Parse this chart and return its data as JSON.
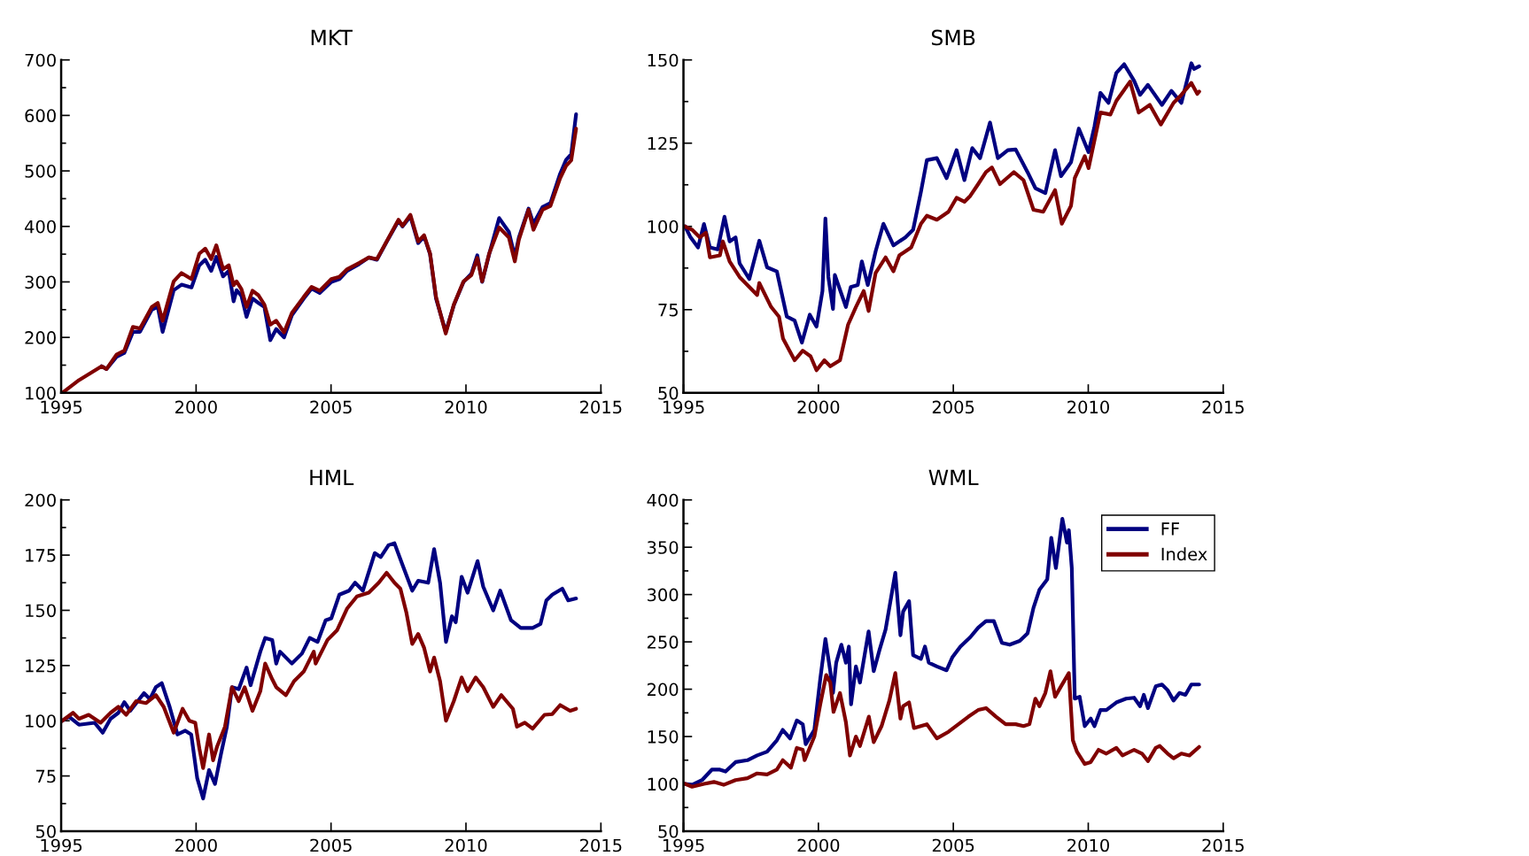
{
  "chart_data": [
    {
      "type": "line",
      "title": "MKT",
      "xlim": [
        1995,
        2015
      ],
      "xticks": [
        1995,
        2000,
        2005,
        2010,
        2015
      ],
      "ylim": [
        100,
        700
      ],
      "yticks": [
        100,
        200,
        300,
        400,
        500,
        600,
        700
      ],
      "grid": false,
      "legend": false,
      "series": [
        {
          "color": "#000080",
          "x": [
            1996.5,
            1996.68,
            1997.05,
            1997.34,
            1997.66,
            1997.92,
            1998.36,
            1998.58,
            1998.76,
            1999.17,
            1999.46,
            1999.83,
            2000.12,
            2000.34,
            2000.56,
            2000.75,
            2001.0,
            2001.21,
            2001.39,
            2001.5,
            2001.68,
            2001.87,
            2002.09,
            2002.31,
            2002.53,
            2002.75,
            2002.97,
            2003.26,
            2003.55,
            2003.99,
            2004.28,
            2004.58,
            2005.01,
            2005.31,
            2005.6,
            2006.04,
            2006.4,
            2006.7,
            2007.06,
            2007.5,
            2007.65,
            2007.94,
            2008.23,
            2008.45,
            2008.67,
            2008.89,
            2009.25,
            2009.55,
            2009.91,
            2010.2,
            2010.42,
            2010.6,
            2010.86,
            2011.23,
            2011.59,
            2011.81,
            2011.96,
            2012.32,
            2012.5,
            2012.84,
            2013.13,
            2013.49,
            2013.71,
            2013.9,
            2014.08
          ],
          "values": [
            148,
            143,
            165,
            172,
            210,
            210,
            250,
            255,
            210,
            285,
            295,
            290,
            330,
            340,
            320,
            345,
            310,
            320,
            265,
            285,
            275,
            237,
            270,
            262,
            255,
            195,
            215,
            200,
            240,
            270,
            288,
            280,
            300,
            305,
            320,
            332,
            344,
            340,
            372,
            410,
            400,
            418,
            370,
            382,
            350,
            270,
            210,
            258,
            300,
            315,
            348,
            300,
            350,
            415,
            390,
            345,
            380,
            432,
            405,
            435,
            442,
            495,
            520,
            530,
            602
          ]
        },
        {
          "color": "#800000",
          "x": [
            1995.04,
            1995.66,
            1996.5,
            1996.68,
            1997.05,
            1997.34,
            1997.66,
            1997.92,
            1998.36,
            1998.58,
            1998.76,
            1999.17,
            1999.46,
            1999.83,
            2000.12,
            2000.34,
            2000.56,
            2000.75,
            2001.0,
            2001.21,
            2001.39,
            2001.5,
            2001.68,
            2001.87,
            2002.09,
            2002.31,
            2002.53,
            2002.75,
            2002.97,
            2003.26,
            2003.55,
            2003.99,
            2004.28,
            2004.58,
            2005.01,
            2005.31,
            2005.6,
            2006.04,
            2006.4,
            2006.7,
            2007.06,
            2007.5,
            2007.65,
            2007.94,
            2008.23,
            2008.45,
            2008.67,
            2008.89,
            2009.25,
            2009.55,
            2009.91,
            2010.2,
            2010.42,
            2010.6,
            2010.86,
            2011.23,
            2011.59,
            2011.81,
            2011.96,
            2012.32,
            2012.5,
            2012.84,
            2013.13,
            2013.49,
            2013.71,
            2013.9,
            2014.08
          ],
          "values": [
            100,
            123,
            148,
            143,
            169,
            176,
            219,
            216,
            255,
            262,
            230,
            301,
            316,
            305,
            351,
            360,
            341,
            366,
            323,
            330,
            294,
            301,
            287,
            255,
            284,
            276,
            259,
            223,
            230,
            209,
            244,
            273,
            291,
            284,
            305,
            309,
            323,
            334,
            344,
            341,
            373,
            412,
            401,
            421,
            373,
            384,
            351,
            273,
            207,
            259,
            301,
            312,
            343,
            301,
            351,
            398,
            380,
            337,
            376,
            430,
            394,
            430,
            437,
            487,
            509,
            519,
            576
          ]
        }
      ]
    },
    {
      "type": "line",
      "title": "SMB",
      "xlim": [
        1995,
        2015
      ],
      "xticks": [
        1995,
        2000,
        2005,
        2010,
        2015
      ],
      "ylim": [
        50,
        150
      ],
      "yticks": [
        50,
        75,
        100,
        125,
        150
      ],
      "grid": false,
      "legend": false,
      "series": [
        {
          "color": "#000080",
          "x": [
            1995.06,
            1995.25,
            1995.54,
            1995.76,
            1995.98,
            1996.27,
            1996.52,
            1996.71,
            1996.93,
            1997.08,
            1997.44,
            1997.81,
            1998.1,
            1998.46,
            1998.83,
            1999.12,
            1999.39,
            1999.68,
            1999.93,
            2000.15,
            2000.26,
            2000.37,
            2000.54,
            2000.61,
            2001.02,
            2001.2,
            2001.46,
            2001.61,
            2001.83,
            2002.12,
            2002.41,
            2002.78,
            2003.22,
            2003.51,
            2003.8,
            2004.02,
            2004.39,
            2004.75,
            2005.12,
            2005.41,
            2005.7,
            2005.99,
            2006.36,
            2006.65,
            2007.02,
            2007.31,
            2007.75,
            2008.04,
            2008.41,
            2008.77,
            2008.99,
            2009.36,
            2009.65,
            2010.01,
            2010.23,
            2010.45,
            2010.75,
            2011.04,
            2011.33,
            2011.7,
            2011.92,
            2012.21,
            2012.73,
            2013.08,
            2013.45,
            2013.82,
            2013.92,
            2014.11
          ],
          "values": [
            100,
            96.9,
            93.7,
            100.7,
            93.7,
            93.1,
            102.9,
            95.5,
            96.7,
            88.9,
            84.2,
            95.7,
            87.7,
            86.5,
            72.9,
            71.7,
            65.1,
            73.5,
            69.9,
            80.6,
            102.4,
            84.8,
            75.2,
            85.4,
            75.8,
            81.8,
            82.4,
            89.5,
            82.4,
            92.5,
            100.8,
            94.3,
            96.7,
            99,
            110.4,
            119.9,
            120.5,
            114.5,
            122.9,
            113.9,
            123.5,
            120.5,
            131.2,
            120.5,
            122.9,
            123.1,
            116.3,
            111.5,
            110,
            122.9,
            115.1,
            119.3,
            129.4,
            122.3,
            130,
            140.1,
            137.1,
            146.1,
            148.7,
            143.7,
            139.5,
            142.5,
            136.5,
            140.7,
            137.1,
            149,
            147.3,
            148.1
          ]
        },
        {
          "color": "#800000",
          "x": [
            1995.06,
            1995.32,
            1995.61,
            1995.83,
            1995.98,
            1996.35,
            1996.46,
            1996.71,
            1997.08,
            1997.37,
            1997.73,
            1997.81,
            1998.25,
            1998.54,
            1998.69,
            1999.12,
            1999.42,
            1999.71,
            1999.93,
            2000.22,
            2000.44,
            2000.8,
            2001.1,
            2001.39,
            2001.68,
            2001.86,
            2002.12,
            2002.49,
            2002.78,
            2003.0,
            2003.44,
            2003.8,
            2004.02,
            2004.39,
            2004.82,
            2005.12,
            2005.41,
            2005.63,
            2005.92,
            2006.21,
            2006.43,
            2006.73,
            2007.24,
            2007.6,
            2007.97,
            2008.33,
            2008.77,
            2009.02,
            2009.36,
            2009.5,
            2009.87,
            2010.01,
            2010.45,
            2010.82,
            2011.04,
            2011.55,
            2011.87,
            2012.28,
            2012.69,
            2013.16,
            2013.45,
            2013.82,
            2014.04,
            2014.11
          ],
          "values": [
            100,
            99,
            96.7,
            98.1,
            90.7,
            91.3,
            95.5,
            89.5,
            84.8,
            82.4,
            79.4,
            83,
            75.8,
            72.9,
            66.3,
            59.8,
            62.7,
            61,
            56.8,
            59.8,
            58,
            59.8,
            70.5,
            75.8,
            80.6,
            74.6,
            86,
            90.7,
            86.5,
            91.3,
            93.7,
            100.8,
            103.2,
            102,
            104.4,
            108.6,
            107.4,
            109.2,
            112.7,
            116.3,
            117.7,
            112.7,
            116.3,
            113.9,
            105,
            104.4,
            110.9,
            100.8,
            106.2,
            114.5,
            121.1,
            117.5,
            134.2,
            133.6,
            137.7,
            143.5,
            134.2,
            136.5,
            130.6,
            137.1,
            139.5,
            143.1,
            139.8,
            140.5
          ]
        }
      ]
    },
    {
      "type": "line",
      "title": "HML",
      "xlim": [
        1995,
        2015
      ],
      "xticks": [
        1995,
        2000,
        2005,
        2010,
        2015
      ],
      "ylim": [
        50,
        200
      ],
      "yticks": [
        50,
        75,
        100,
        125,
        150,
        175,
        200
      ],
      "grid": false,
      "legend": false,
      "series": [
        {
          "color": "#000080",
          "x": [
            1995.04,
            1995.29,
            1995.66,
            1996.24,
            1996.54,
            1996.83,
            1997.12,
            1997.34,
            1997.56,
            1998.07,
            1998.29,
            1998.51,
            1998.73,
            1999.02,
            1999.31,
            1999.6,
            1999.82,
            2000.04,
            2000.26,
            2000.48,
            2000.7,
            2000.92,
            2001.14,
            2001.33,
            2001.58,
            2001.87,
            2002.02,
            2002.38,
            2002.56,
            2002.82,
            2002.97,
            2003.11,
            2003.55,
            2003.92,
            2004.21,
            2004.5,
            2004.8,
            2005.01,
            2005.31,
            2005.67,
            2005.89,
            2006.18,
            2006.62,
            2006.84,
            2007.13,
            2007.35,
            2007.65,
            2008.01,
            2008.23,
            2008.6,
            2008.82,
            2009.04,
            2009.26,
            2009.48,
            2009.62,
            2009.84,
            2010.06,
            2010.43,
            2010.64,
            2011.01,
            2011.27,
            2011.67,
            2012.03,
            2012.47,
            2012.76,
            2012.98,
            2013.2,
            2013.57,
            2013.79,
            2014.08
          ],
          "values": [
            100,
            101.8,
            98.2,
            99.1,
            94.6,
            100.9,
            103.6,
            108.4,
            104.5,
            112.5,
            109.8,
            115.2,
            117,
            106.3,
            93.8,
            95.5,
            93.8,
            74.1,
            64.8,
            77.7,
            71.4,
            84.8,
            97.3,
            115.2,
            114.3,
            124.1,
            116.1,
            131.3,
            137.5,
            136.6,
            125.9,
            131.3,
            125.9,
            130.4,
            137.5,
            135.7,
            145.5,
            146.4,
            157.1,
            158.9,
            162.5,
            158.9,
            175.9,
            174.1,
            179.5,
            180.4,
            170.5,
            158.9,
            163.4,
            162.5,
            177.7,
            162.5,
            135.7,
            147.3,
            144.6,
            165.2,
            158,
            172.3,
            160.7,
            150,
            158.9,
            145.5,
            142,
            142,
            143.8,
            154.5,
            157.1,
            159.8,
            154.5,
            155.4
          ]
        },
        {
          "color": "#800000",
          "x": [
            1995.04,
            1995.44,
            1995.66,
            1996.02,
            1996.46,
            1996.83,
            1997.12,
            1997.41,
            1997.78,
            1998.14,
            1998.51,
            1998.8,
            1999.17,
            1999.5,
            1999.75,
            1999.97,
            2000.12,
            2000.26,
            2000.48,
            2000.63,
            2000.78,
            2001.07,
            2001.33,
            2001.58,
            2001.8,
            2002.09,
            2002.38,
            2002.56,
            2002.82,
            2002.97,
            2003.33,
            2003.63,
            2003.99,
            2004.36,
            2004.43,
            2004.87,
            2005.23,
            2005.6,
            2005.96,
            2006.4,
            2006.77,
            2007.06,
            2007.35,
            2007.57,
            2007.79,
            2008.01,
            2008.23,
            2008.45,
            2008.67,
            2008.82,
            2009.04,
            2009.26,
            2009.55,
            2009.84,
            2010.06,
            2010.36,
            2010.64,
            2011.01,
            2011.31,
            2011.74,
            2011.89,
            2012.18,
            2012.47,
            2012.91,
            2013.2,
            2013.49,
            2013.86,
            2014.08
          ],
          "values": [
            100,
            103.6,
            100.9,
            102.7,
            99.1,
            103.6,
            106.3,
            102.7,
            108.9,
            108,
            111.6,
            106.3,
            94.6,
            105.4,
            100,
            99.1,
            87.5,
            78.6,
            93.8,
            82.1,
            88.4,
            97.3,
            115.2,
            108.9,
            115.2,
            104.5,
            113.4,
            125.9,
            118.8,
            115.2,
            111.6,
            117.9,
            122.3,
            131.3,
            125.9,
            136.6,
            141.1,
            150.9,
            156.3,
            158,
            162.5,
            167,
            162.5,
            159.8,
            149.1,
            134.8,
            139.3,
            133,
            122.3,
            128.6,
            117.9,
            100,
            108.9,
            119.6,
            113.4,
            119.6,
            115.2,
            106.3,
            111.6,
            105.4,
            97.3,
            99.1,
            96.4,
            102.7,
            103,
            107.1,
            104.5,
            105.4
          ]
        }
      ]
    },
    {
      "type": "line",
      "title": "WML",
      "xlim": [
        1995,
        2015
      ],
      "xticks": [
        1995,
        2000,
        2005,
        2010,
        2015
      ],
      "ylim": [
        50,
        400
      ],
      "yticks": [
        50,
        100,
        150,
        200,
        250,
        300,
        350,
        400
      ],
      "grid": false,
      "legend": "top right",
      "series": [
        {
          "name": "FF",
          "color": "#000080",
          "x": [
            1995.06,
            1995.32,
            1995.69,
            1996.05,
            1996.35,
            1996.56,
            1996.93,
            1997.37,
            1997.73,
            1998.1,
            1998.46,
            1998.68,
            1998.95,
            1999.2,
            1999.42,
            1999.53,
            1999.85,
            2000.07,
            2000.26,
            2000.44,
            2000.54,
            2000.66,
            2000.85,
            2001.02,
            2001.13,
            2001.21,
            2001.39,
            2001.54,
            2001.86,
            2002.05,
            2002.27,
            2002.49,
            2002.85,
            2003.04,
            2003.14,
            2003.36,
            2003.51,
            2003.8,
            2003.95,
            2004.09,
            2004.39,
            2004.75,
            2004.97,
            2005.26,
            2005.63,
            2005.92,
            2006.21,
            2006.5,
            2006.8,
            2007.09,
            2007.46,
            2007.75,
            2007.97,
            2008.19,
            2008.48,
            2008.63,
            2008.8,
            2009.04,
            2009.21,
            2009.28,
            2009.39,
            2009.5,
            2009.68,
            2009.87,
            2010.09,
            2010.23,
            2010.45,
            2010.67,
            2011.04,
            2011.4,
            2011.7,
            2011.92,
            2012.06,
            2012.21,
            2012.5,
            2012.73,
            2012.94,
            2013.16,
            2013.38,
            2013.6,
            2013.82,
            2014.11
          ],
          "values": [
            100,
            99,
            104,
            115,
            115,
            113,
            123,
            125,
            130,
            134,
            146,
            157,
            148,
            167,
            163,
            142,
            157,
            211,
            253,
            219,
            196,
            228,
            247,
            228,
            245,
            184,
            224,
            207,
            261,
            219,
            242,
            263,
            323,
            257,
            282,
            293,
            236,
            232,
            245,
            228,
            224,
            220,
            234,
            245,
            255,
            265,
            272,
            272,
            249,
            247,
            251,
            259,
            286,
            305,
            316,
            360,
            328,
            380,
            355,
            368,
            328,
            190,
            192,
            161,
            169,
            161,
            178,
            178,
            186,
            190,
            191,
            182,
            194,
            180,
            203,
            205,
            199,
            188,
            196,
            194,
            205,
            205
          ]
        },
        {
          "name": "Index",
          "color": "#800000",
          "x": [
            1995.06,
            1995.32,
            1995.76,
            1996.13,
            1996.49,
            1996.93,
            1997.37,
            1997.73,
            1998.1,
            1998.46,
            1998.68,
            1998.98,
            1999.2,
            1999.42,
            1999.49,
            1999.85,
            2000.07,
            2000.29,
            2000.44,
            2000.56,
            2000.8,
            2001.02,
            2001.17,
            2001.39,
            2001.54,
            2001.87,
            2002.05,
            2002.34,
            2002.63,
            2002.85,
            2003.04,
            2003.14,
            2003.36,
            2003.54,
            2004.02,
            2004.39,
            2004.82,
            2005.19,
            2005.56,
            2005.92,
            2006.21,
            2006.58,
            2006.94,
            2007.31,
            2007.6,
            2007.82,
            2008.04,
            2008.19,
            2008.41,
            2008.6,
            2008.77,
            2008.99,
            2009.28,
            2009.43,
            2009.58,
            2009.87,
            2010.09,
            2010.38,
            2010.67,
            2011.04,
            2011.27,
            2011.7,
            2011.99,
            2012.21,
            2012.5,
            2012.65,
            2012.94,
            2013.16,
            2013.45,
            2013.75,
            2014.11
          ],
          "values": [
            100,
            97,
            100,
            102,
            99,
            104,
            106,
            111,
            110,
            115,
            125,
            117,
            138,
            136,
            125,
            150,
            184,
            215,
            207,
            176,
            196,
            165,
            130,
            150,
            140,
            171,
            144,
            161,
            188,
            217,
            169,
            182,
            186,
            159,
            163,
            148,
            155,
            163,
            171,
            178,
            180,
            171,
            163,
            163,
            161,
            163,
            190,
            182,
            196,
            219,
            192,
            203,
            217,
            146,
            134,
            121,
            123,
            136,
            132,
            138,
            130,
            136,
            132,
            124,
            138,
            140,
            132,
            127,
            132,
            130,
            139
          ]
        }
      ]
    }
  ]
}
